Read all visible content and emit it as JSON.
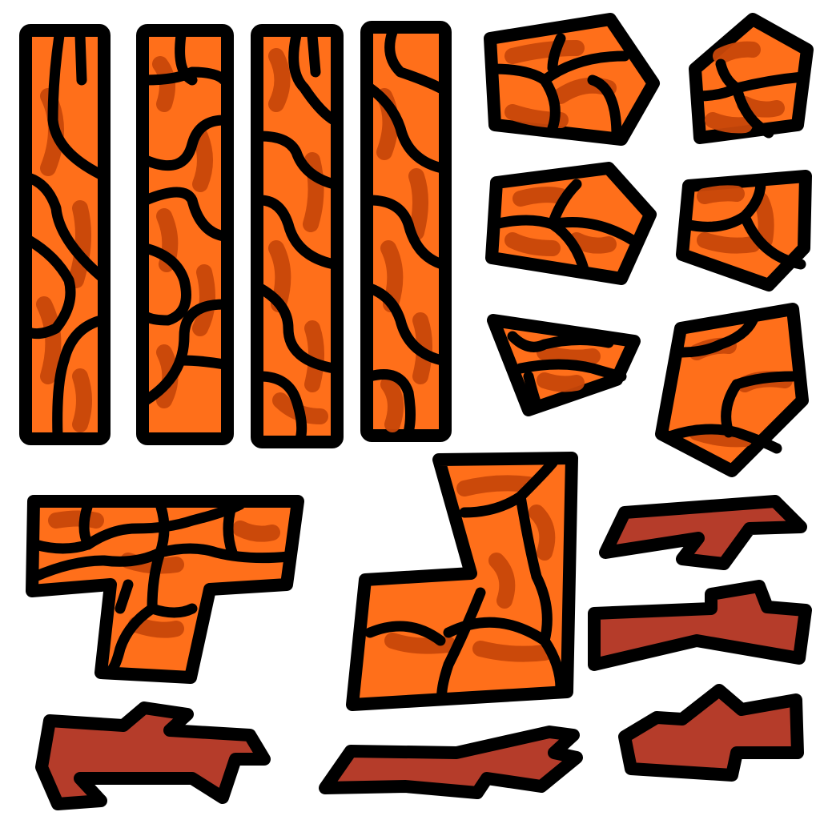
{
  "sheet": {
    "title": "",
    "background": "#ffffff",
    "palette": {
      "lava": "#ff6f1a",
      "lava_shadow": "#c8470a",
      "outline": "#000000",
      "rock": "#b53c2a"
    }
  },
  "sprites": [
    {
      "name": "lava-column-1",
      "kind": "lava-column"
    },
    {
      "name": "lava-column-2",
      "kind": "lava-column"
    },
    {
      "name": "lava-column-3",
      "kind": "lava-column"
    },
    {
      "name": "lava-column-4",
      "kind": "lava-column"
    },
    {
      "name": "lava-chunk-pentagon-1",
      "kind": "lava-chunk"
    },
    {
      "name": "lava-chunk-pentagon-2",
      "kind": "lava-chunk"
    },
    {
      "name": "lava-chunk-pentagon-3",
      "kind": "lava-chunk"
    },
    {
      "name": "lava-chunk-pentagon-4",
      "kind": "lava-chunk"
    },
    {
      "name": "lava-chunk-triangle",
      "kind": "lava-chunk"
    },
    {
      "name": "lava-chunk-pentagon-5",
      "kind": "lava-chunk"
    },
    {
      "name": "lava-t-piece",
      "kind": "lava-block"
    },
    {
      "name": "lava-l-piece",
      "kind": "lava-block"
    },
    {
      "name": "rock-shard-1",
      "kind": "rock-shard"
    },
    {
      "name": "rock-shard-2",
      "kind": "rock-shard"
    },
    {
      "name": "rock-shard-3",
      "kind": "rock-shard"
    },
    {
      "name": "rock-shard-4",
      "kind": "rock-shard"
    },
    {
      "name": "rock-shard-5",
      "kind": "rock-shard"
    }
  ]
}
